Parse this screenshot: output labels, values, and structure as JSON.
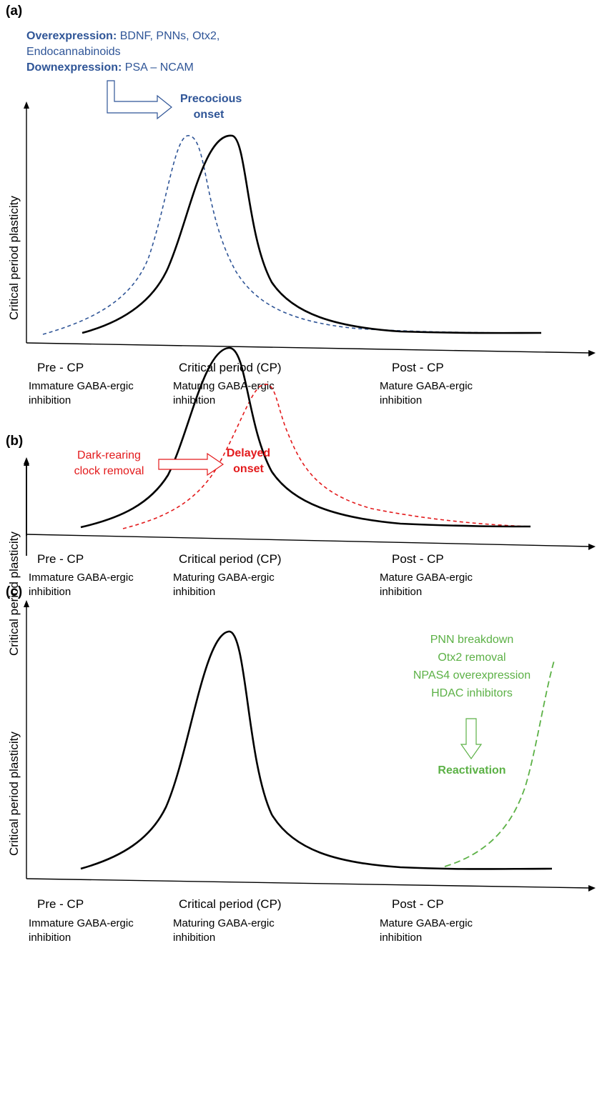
{
  "colors": {
    "blue": "#2f5597",
    "red": "#e31a1c",
    "green": "#5cb146",
    "black": "#000000"
  },
  "ylabel": "Critical period plasticity",
  "x_stages": [
    {
      "label": "Pre - CP",
      "sub1": "Immature GABA-ergic",
      "sub2": "inhibition"
    },
    {
      "label": "Critical period (CP)",
      "sub1": "Maturing GABA-ergic",
      "sub2": "inhibition"
    },
    {
      "label": "Post - CP",
      "sub1": "Mature GABA-ergic",
      "sub2": "inhibition"
    }
  ],
  "panel_a": {
    "label": "(a)",
    "over_label": "Overexpression:",
    "over_items": " BDNF, PNNs, Otx2,",
    "over_items2": "Endocannabinoids",
    "down_label": "Downexpression:",
    "down_items": " PSA – NCAM",
    "effect_line1": "Precocious",
    "effect_line2": "onset"
  },
  "panel_b": {
    "label": "(b)",
    "cause_line1": "Dark-rearing",
    "cause_line2": "clock removal",
    "effect_line1": "Delayed",
    "effect_line2": "onset"
  },
  "panel_c": {
    "label": "(c)",
    "cause_lines": [
      "PNN breakdown",
      "Otx2 removal",
      "NPAS4 overexpression",
      "HDAC inhibitors"
    ],
    "effect": "Reactivation"
  }
}
